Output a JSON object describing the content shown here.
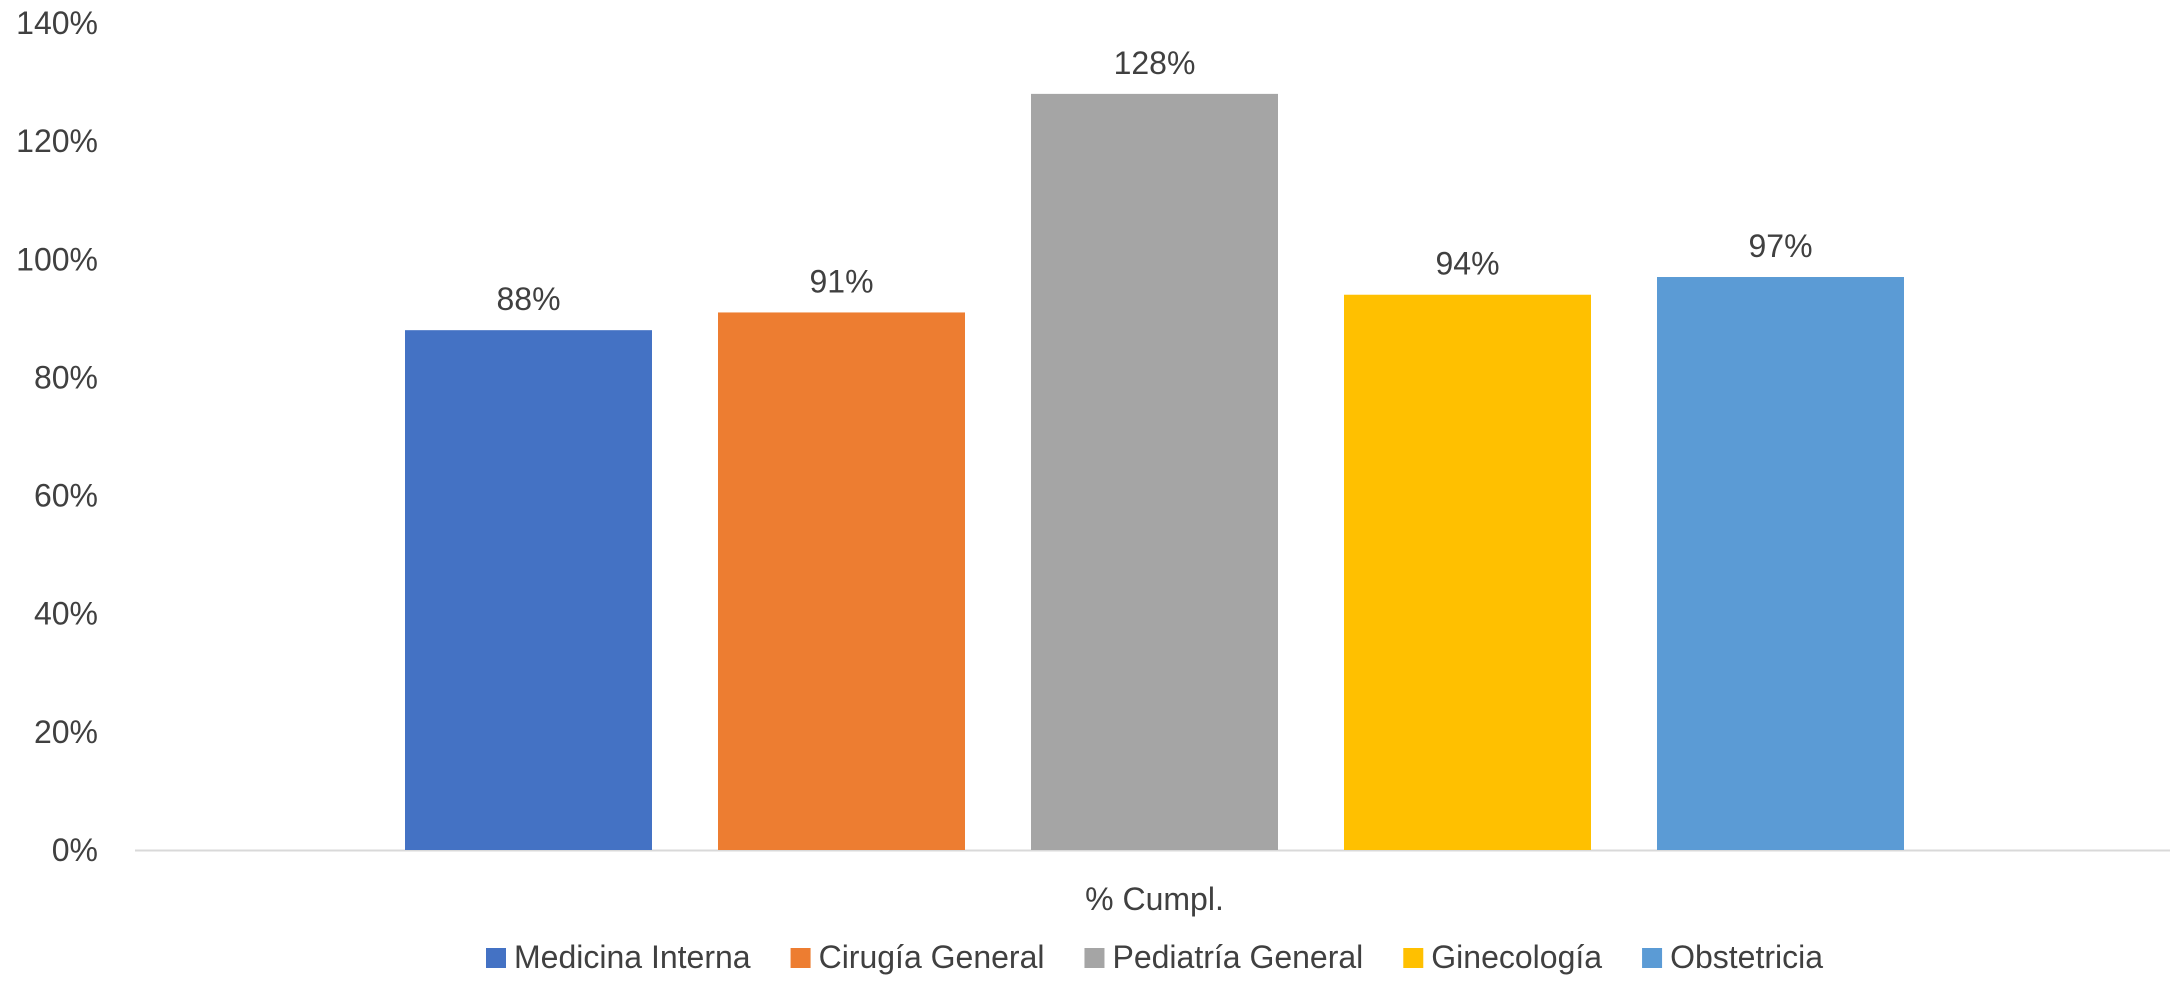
{
  "chart_data": {
    "type": "bar",
    "categories": [
      "% Cumpl."
    ],
    "series": [
      {
        "name": "Medicina Interna",
        "values": [
          88
        ],
        "color": "#4472C4",
        "label": "88%"
      },
      {
        "name": "Cirugía General",
        "values": [
          91
        ],
        "color": "#ED7D31",
        "label": "91%"
      },
      {
        "name": "Pediatría General",
        "values": [
          128
        ],
        "color": "#A5A5A5",
        "label": "128%"
      },
      {
        "name": "Ginecología",
        "values": [
          94
        ],
        "color": "#FFC000",
        "label": "94%"
      },
      {
        "name": "Obstetricia",
        "values": [
          97
        ],
        "color": "#5B9BD5",
        "label": "97%"
      }
    ],
    "yticks": [
      {
        "value": 0,
        "label": "0%"
      },
      {
        "value": 20,
        "label": "20%"
      },
      {
        "value": 40,
        "label": "40%"
      },
      {
        "value": 60,
        "label": "60%"
      },
      {
        "value": 80,
        "label": "80%"
      },
      {
        "value": 100,
        "label": "100%"
      },
      {
        "value": 120,
        "label": "120%"
      },
      {
        "value": 140,
        "label": "140%"
      }
    ],
    "ylim": [
      0,
      140
    ],
    "title": "",
    "xlabel": "",
    "ylabel": "",
    "grid": false,
    "legend_position": "bottom",
    "axis_color": "#D9D9D9",
    "text_color": "#404040"
  }
}
